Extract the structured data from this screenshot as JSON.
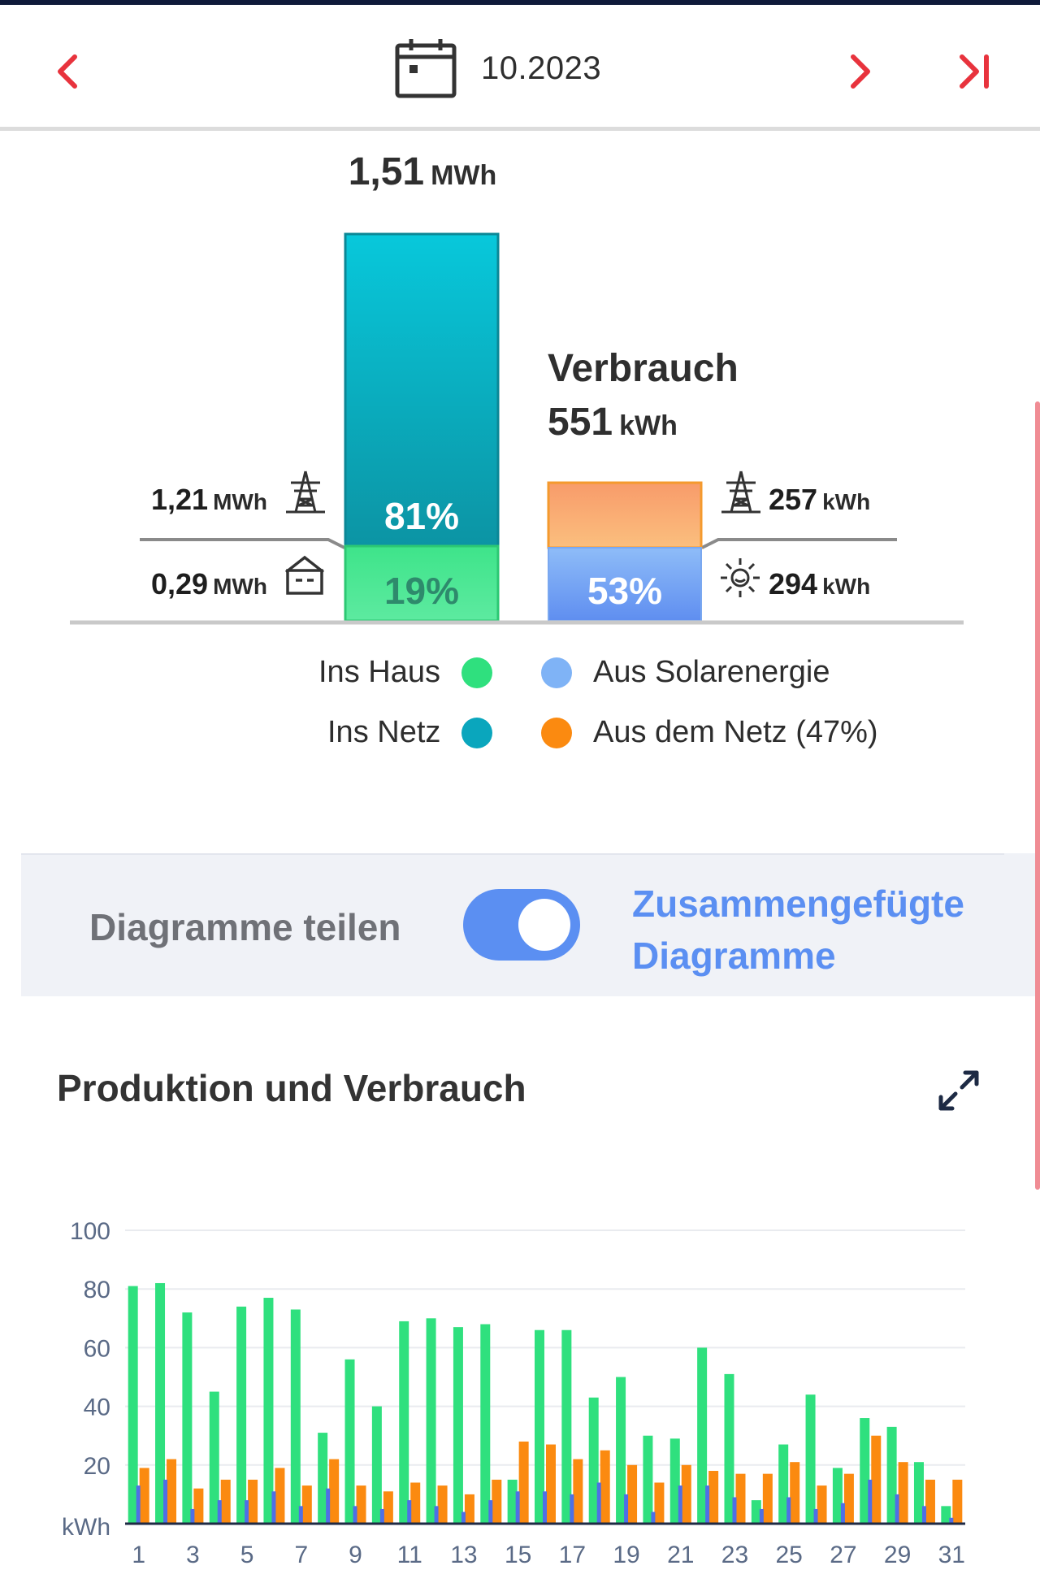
{
  "header": {
    "date": "10.2023"
  },
  "production": {
    "total_value": "1,51",
    "total_unit": "MWh",
    "to_grid_value": "1,21",
    "to_grid_unit": "MWh",
    "to_house_value": "0,29",
    "to_house_unit": "MWh",
    "to_grid_pct": "81%",
    "to_house_pct": "19%"
  },
  "consumption": {
    "title": "Verbrauch",
    "total_value": "551",
    "total_unit": "kWh",
    "from_grid_value": "257",
    "from_grid_unit": "kWh",
    "from_solar_value": "294",
    "from_solar_unit": "kWh",
    "from_solar_pct": "53%"
  },
  "legend": {
    "ins_haus": "Ins Haus",
    "ins_netz": "Ins Netz",
    "aus_solar": "Aus Solarenergie",
    "aus_netz": "Aus dem Netz (47%)"
  },
  "toggle": {
    "left_label": "Diagramme teilen",
    "right_label_line1": "Zusammengefügte",
    "right_label_line2": "Diagramme",
    "state": "on"
  },
  "chart_section": {
    "title": "Produktion und Verbrauch"
  },
  "colors": {
    "red_accent": "#e8333d",
    "teal": "#0aa6bd",
    "green": "#2fe07e",
    "light_blue": "#7fb3f6",
    "orange": "#fb8a10",
    "toggle_blue": "#5b8ff2",
    "link_blue": "#5b8ff2"
  },
  "chart_data": {
    "type": "bar",
    "ylabel": "kWh",
    "ylim": [
      0,
      100
    ],
    "yticks": [
      20,
      40,
      60,
      80,
      100
    ],
    "x": [
      1,
      2,
      3,
      4,
      5,
      6,
      7,
      8,
      9,
      10,
      11,
      12,
      13,
      14,
      15,
      16,
      17,
      18,
      19,
      20,
      21,
      22,
      23,
      24,
      25,
      26,
      27,
      28,
      29,
      30,
      31
    ],
    "xtick_labels": [
      "1",
      "3",
      "5",
      "7",
      "9",
      "11",
      "13",
      "15",
      "17",
      "19",
      "21",
      "23",
      "25",
      "27",
      "29",
      "31"
    ],
    "series": [
      {
        "color": "#2fe07e",
        "values": [
          81,
          82,
          72,
          45,
          74,
          77,
          73,
          31,
          56,
          40,
          69,
          70,
          67,
          68,
          15,
          66,
          66,
          43,
          50,
          30,
          29,
          60,
          51,
          8,
          27,
          44,
          19,
          36,
          33,
          21,
          6
        ]
      },
      {
        "color": "#fb8a10",
        "values": [
          19,
          22,
          12,
          15,
          15,
          19,
          13,
          22,
          13,
          11,
          14,
          13,
          10,
          15,
          28,
          27,
          22,
          25,
          20,
          14,
          20,
          18,
          17,
          17,
          21,
          13,
          17,
          30,
          21,
          15,
          15
        ]
      },
      {
        "color": "#4f6fe6",
        "values": [
          13,
          15,
          5,
          8,
          8,
          11,
          6,
          12,
          6,
          5,
          8,
          6,
          4,
          8,
          11,
          11,
          10,
          14,
          10,
          4,
          13,
          13,
          9,
          5,
          9,
          5,
          7,
          15,
          10,
          6,
          2
        ]
      }
    ]
  }
}
